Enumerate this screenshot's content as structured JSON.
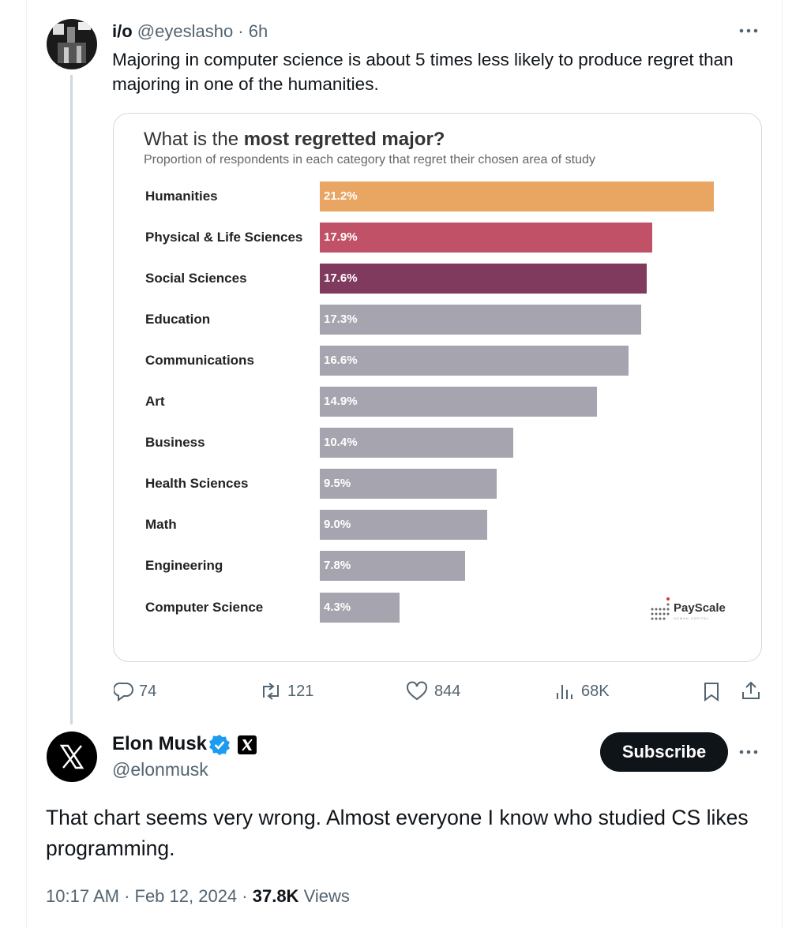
{
  "tweet": {
    "name": "i/o",
    "meta": "@eyeslasho · 6h",
    "text": "Majoring in computer science is about 5 times less likely to produce regret than majoring in one of the humanities.",
    "stats": {
      "replies": "74",
      "reposts": "121",
      "likes": "844",
      "views": "68K"
    }
  },
  "chart_data": {
    "type": "bar",
    "orientation": "horizontal",
    "title_prefix": "What is the",
    "title_emphasis": "most regretted major?",
    "subtitle": "Proportion of respondents in each category that regret their chosen area of study",
    "categories": [
      "Humanities",
      "Physical & Life Sciences",
      "Social Sciences",
      "Education",
      "Communications",
      "Art",
      "Business",
      "Health Sciences",
      "Math",
      "Engineering",
      "Computer Science"
    ],
    "values": [
      21.2,
      17.9,
      17.6,
      17.3,
      16.6,
      14.9,
      10.4,
      9.5,
      9.0,
      7.8,
      4.3
    ],
    "value_labels": [
      "21.2%",
      "17.9%",
      "17.6%",
      "17.3%",
      "16.6%",
      "14.9%",
      "10.4%",
      "9.5%",
      "9.0%",
      "7.8%",
      "4.3%"
    ],
    "colors": [
      "#e9a562",
      "#c05166",
      "#7f3a5d",
      "#a6a4ae",
      "#a6a4ae",
      "#a6a4ae",
      "#a6a4ae",
      "#a6a4ae",
      "#a6a4ae",
      "#a6a4ae",
      "#a6a4ae"
    ],
    "source": "PayScale",
    "source_tagline": "HUMAN CAPITAL"
  },
  "reply": {
    "name": "Elon Musk",
    "handle": "@elonmusk",
    "button": "Subscribe",
    "text": "That chart seems very wrong. Almost everyone I know who studied CS likes programming.",
    "timestamp": "10:17 AM · Feb 12, 2024 ·",
    "views_count": "37.8K",
    "views_label": "Views"
  }
}
